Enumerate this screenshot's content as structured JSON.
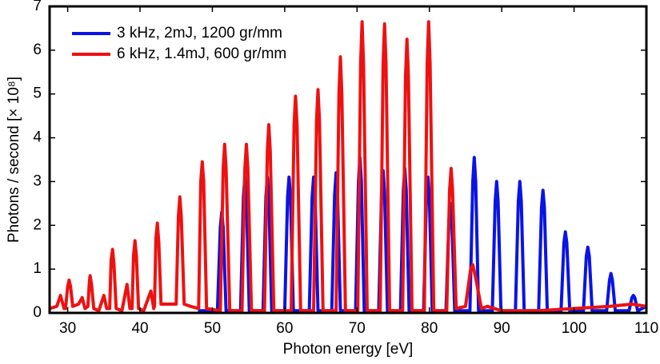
{
  "chart_data": {
    "type": "line",
    "xlabel": "Photon energy [eV]",
    "ylabel": "Photons / second [× 10⁸]",
    "xlim": [
      27.5,
      110
    ],
    "xticks": [
      30,
      40,
      50,
      60,
      70,
      80,
      90,
      100,
      110
    ],
    "ylim": [
      0,
      7
    ],
    "yticks": [
      0,
      1,
      2,
      3,
      4,
      5,
      6,
      7
    ],
    "legend": "upper-left",
    "series": [
      {
        "name": "3 kHz, 2mJ, 1200 gr/mm",
        "color": "#0a14e6",
        "x": [
          48.0,
          50.7,
          51.1,
          51.3,
          51.5,
          51.9,
          53.9,
          54.3,
          54.5,
          54.7,
          55.1,
          57.0,
          57.4,
          57.6,
          57.8,
          58.2,
          60.0,
          60.4,
          60.6,
          60.8,
          61.2,
          63.4,
          63.8,
          64.0,
          64.2,
          64.6,
          66.5,
          66.9,
          67.1,
          67.3,
          67.7,
          69.8,
          70.2,
          70.4,
          70.6,
          71.0,
          73.0,
          73.4,
          73.6,
          73.8,
          74.2,
          76.0,
          76.4,
          76.6,
          76.8,
          77.2,
          79.2,
          79.6,
          79.8,
          80.0,
          80.4,
          82.3,
          82.7,
          82.9,
          83.1,
          83.5,
          85.6,
          86.0,
          86.2,
          86.4,
          86.8,
          88.7,
          89.1,
          89.3,
          89.5,
          89.9,
          91.9,
          92.3,
          92.5,
          92.7,
          93.1,
          95.1,
          95.5,
          95.7,
          95.9,
          96.3,
          98.2,
          98.6,
          98.8,
          99.0,
          99.4,
          101.3,
          101.7,
          101.9,
          102.1,
          102.5,
          104.5,
          104.9,
          105.1,
          105.3,
          105.7,
          107.6,
          108.0,
          108.2,
          108.4,
          108.8,
          110.0
        ],
        "values": [
          0.05,
          0.05,
          1.95,
          2.3,
          1.95,
          0.05,
          0.05,
          2.65,
          3.1,
          2.65,
          0.05,
          0.05,
          2.65,
          3.1,
          2.65,
          0.05,
          0.05,
          2.65,
          3.1,
          2.65,
          0.05,
          0.05,
          2.65,
          3.1,
          2.65,
          0.05,
          0.05,
          2.7,
          3.2,
          2.7,
          0.05,
          0.05,
          3.0,
          3.55,
          3.0,
          0.05,
          0.05,
          2.75,
          3.25,
          2.75,
          0.05,
          0.05,
          2.8,
          3.3,
          2.8,
          0.05,
          0.05,
          2.65,
          3.1,
          2.65,
          0.05,
          0.05,
          2.1,
          2.5,
          2.1,
          0.05,
          0.05,
          3.0,
          3.55,
          3.0,
          0.05,
          0.05,
          2.55,
          3.0,
          2.55,
          0.05,
          0.05,
          2.55,
          3.0,
          2.55,
          0.05,
          0.05,
          2.4,
          2.8,
          2.4,
          0.05,
          0.05,
          1.6,
          1.85,
          1.6,
          0.05,
          0.05,
          1.3,
          1.5,
          1.3,
          0.05,
          0.05,
          0.75,
          0.9,
          0.75,
          0.05,
          0.05,
          0.35,
          0.4,
          0.35,
          0.05,
          0.15
        ]
      },
      {
        "name": "6 kHz, 1.4mJ, 600 gr/mm",
        "color": "#ee1111",
        "x": [
          27.5,
          28.5,
          29.0,
          29.5,
          29.7,
          30.0,
          30.2,
          30.4,
          30.7,
          31.5,
          32.0,
          32.4,
          32.8,
          33.0,
          33.1,
          33.3,
          33.6,
          34.3,
          35.0,
          35.4,
          35.8,
          36.0,
          36.2,
          36.4,
          36.7,
          37.5,
          38.2,
          38.6,
          38.9,
          39.1,
          39.3,
          39.5,
          39.8,
          40.5,
          41.5,
          41.9,
          42.0,
          42.2,
          42.4,
          42.6,
          42.9,
          43.5,
          44.5,
          45.0,
          45.3,
          45.5,
          45.7,
          46.1,
          47.0,
          48.1,
          48.4,
          48.6,
          48.8,
          49.2,
          51.1,
          51.5,
          51.7,
          51.9,
          52.4,
          54.1,
          54.5,
          54.7,
          54.9,
          55.4,
          57.2,
          57.6,
          57.8,
          58.0,
          58.5,
          60.9,
          61.3,
          61.5,
          61.7,
          62.2,
          64.0,
          64.4,
          64.6,
          64.8,
          65.3,
          67.1,
          67.5,
          67.7,
          67.9,
          68.4,
          70.1,
          70.5,
          70.7,
          70.9,
          71.4,
          73.2,
          73.6,
          73.8,
          74.0,
          74.5,
          76.3,
          76.7,
          76.9,
          77.1,
          77.6,
          79.3,
          79.7,
          79.9,
          80.1,
          80.6,
          82.4,
          82.8,
          83.0,
          83.2,
          83.7,
          85.0,
          85.7,
          86.0,
          86.4,
          87.2,
          88.0,
          90.0,
          95.0,
          100.0,
          105.0,
          108.0,
          110.0
        ],
        "values": [
          0.1,
          0.15,
          0.4,
          0.1,
          0.1,
          0.6,
          0.75,
          0.6,
          0.15,
          0.2,
          0.35,
          0.1,
          0.15,
          0.7,
          0.85,
          0.65,
          0.1,
          0.05,
          0.4,
          0.1,
          0.1,
          1.2,
          1.45,
          1.1,
          0.1,
          0.05,
          0.65,
          0.1,
          0.1,
          1.3,
          1.65,
          1.3,
          0.1,
          0.05,
          0.5,
          0.1,
          0.15,
          1.7,
          2.05,
          1.6,
          0.2,
          0.2,
          0.2,
          0.2,
          2.2,
          2.65,
          2.2,
          0.2,
          0.15,
          0.1,
          3.0,
          3.45,
          3.0,
          0.1,
          0.05,
          3.3,
          3.85,
          3.3,
          0.05,
          0.05,
          3.3,
          3.85,
          3.3,
          0.05,
          0.05,
          3.7,
          4.3,
          3.7,
          0.05,
          0.05,
          4.3,
          4.95,
          4.3,
          0.05,
          0.05,
          4.4,
          5.1,
          4.4,
          0.05,
          0.05,
          5.0,
          5.85,
          5.0,
          0.05,
          0.05,
          5.7,
          6.65,
          5.7,
          0.05,
          0.05,
          5.7,
          6.6,
          5.7,
          0.05,
          0.05,
          5.4,
          6.25,
          5.4,
          0.05,
          0.05,
          5.7,
          6.65,
          5.7,
          0.05,
          0.05,
          2.8,
          3.3,
          2.8,
          0.1,
          0.15,
          1.0,
          1.1,
          0.8,
          0.1,
          0.15,
          0.05,
          0.05,
          0.1,
          0.15,
          0.2,
          0.15
        ]
      }
    ]
  }
}
